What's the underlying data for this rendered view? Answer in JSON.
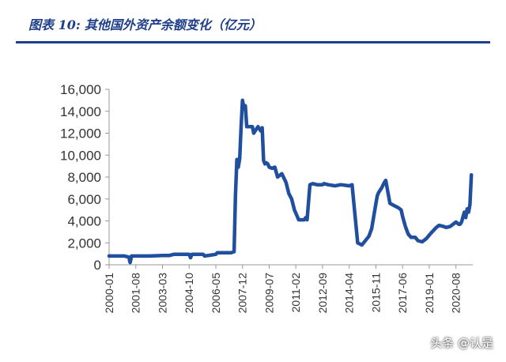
{
  "header": {
    "figure_label": "图表 10:",
    "title": "其他国外资产余额变化（亿元）"
  },
  "watermark": "头条 @认是",
  "colors": {
    "accent": "#1f3f8a",
    "line": "#1f4f9e"
  },
  "chart_data": {
    "type": "line",
    "title": "其他国外资产余额变化（亿元）",
    "xlabel": "",
    "ylabel": "",
    "ylim": [
      0,
      16000
    ],
    "yticks": [
      "0",
      "2,000",
      "4,000",
      "6,000",
      "8,000",
      "10,000",
      "12,000",
      "14,000",
      "16,000"
    ],
    "xticks": [
      "2000-01",
      "2001-08",
      "2003-03",
      "2004-10",
      "2006-05",
      "2007-12",
      "2009-07",
      "2011-02",
      "2012-09",
      "2014-04",
      "2015-11",
      "2017-06",
      "2019-01",
      "2020-08"
    ],
    "grid": false,
    "legend": "none",
    "series": [
      {
        "x": [
          "2000-01",
          "2000-12",
          "2001-03",
          "2001-04",
          "2001-05",
          "2001-08",
          "2002-06",
          "2003-03",
          "2003-08",
          "2003-11",
          "2004-05",
          "2004-10",
          "2004-11",
          "2004-12",
          "2005-06",
          "2005-08",
          "2005-09",
          "2006-05",
          "2006-06",
          "2007-01",
          "2007-04",
          "2007-06",
          "2007-07",
          "2007-08",
          "2007-09",
          "2007-10",
          "2007-11",
          "2007-12",
          "2008-01",
          "2008-02",
          "2008-03",
          "2008-05",
          "2008-06",
          "2008-07",
          "2008-08",
          "2008-11",
          "2009-01",
          "2009-02",
          "2009-03",
          "2009-04",
          "2009-05",
          "2009-06",
          "2009-07",
          "2009-09",
          "2009-11",
          "2010-01",
          "2010-04",
          "2010-07",
          "2010-09",
          "2010-11",
          "2011-01",
          "2011-02",
          "2011-04",
          "2011-06",
          "2011-08",
          "2011-09",
          "2011-10",
          "2011-12",
          "2012-02",
          "2012-05",
          "2012-07",
          "2012-09",
          "2012-10",
          "2013-01",
          "2013-06",
          "2013-10",
          "2014-04",
          "2014-06",
          "2014-10",
          "2015-01",
          "2015-06",
          "2015-08",
          "2015-11",
          "2015-12",
          "2016-01",
          "2016-03",
          "2016-05",
          "2016-06",
          "2016-09",
          "2016-12",
          "2017-03",
          "2017-05",
          "2017-06",
          "2017-08",
          "2017-10",
          "2017-12",
          "2018-03",
          "2018-05",
          "2018-08",
          "2018-11",
          "2019-01",
          "2019-03",
          "2019-06",
          "2019-08",
          "2019-11",
          "2020-01",
          "2020-04",
          "2020-07",
          "2020-08",
          "2020-10",
          "2020-11",
          "2020-12",
          "2021-02",
          "2021-03",
          "2021-04",
          "2021-05",
          "2021-06",
          "2021-07"
        ],
        "values": [
          800,
          800,
          700,
          200,
          800,
          800,
          800,
          850,
          850,
          950,
          950,
          950,
          650,
          950,
          950,
          950,
          800,
          950,
          1100,
          1100,
          1100,
          1200,
          6300,
          9600,
          8900,
          9700,
          12500,
          15000,
          14300,
          14500,
          12600,
          12600,
          12600,
          12600,
          12000,
          12600,
          12200,
          12500,
          9500,
          9200,
          9300,
          9200,
          8900,
          8800,
          8900,
          8000,
          8300,
          7500,
          6500,
          6000,
          5000,
          4700,
          4100,
          4100,
          4100,
          4300,
          4100,
          7300,
          7400,
          7300,
          7300,
          7300,
          7400,
          7300,
          7200,
          7300,
          7200,
          7300,
          2000,
          1800,
          2600,
          3300,
          5600,
          6300,
          6600,
          7000,
          7500,
          7700,
          5600,
          5400,
          5200,
          5000,
          4400,
          3500,
          2800,
          2500,
          2500,
          2200,
          2100,
          2400,
          2700,
          3000,
          3400,
          3600,
          3500,
          3400,
          3500,
          3800,
          3900,
          3700,
          3700,
          3900,
          4800,
          4300,
          5100,
          4800,
          5500,
          8200
        ]
      }
    ]
  }
}
